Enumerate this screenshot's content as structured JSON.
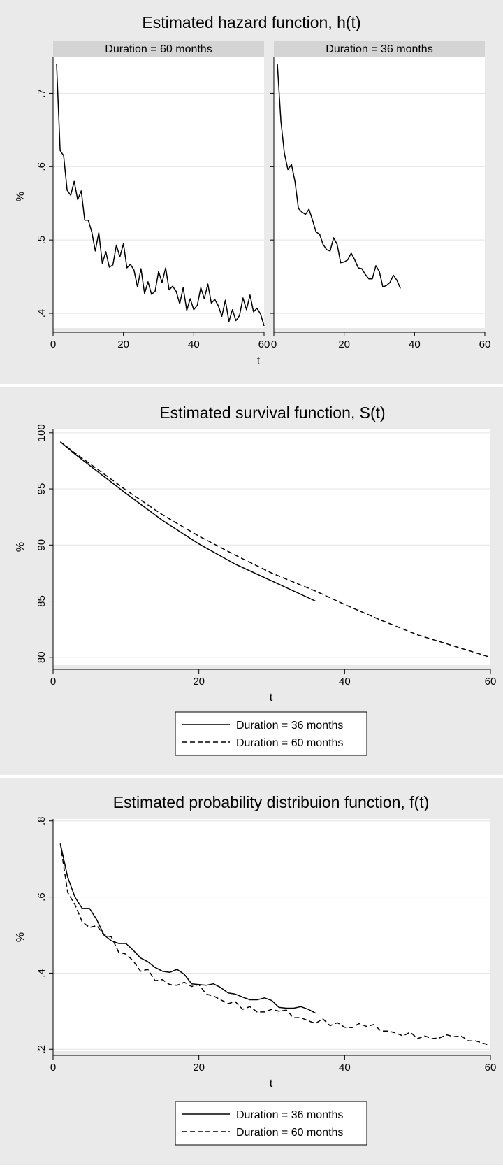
{
  "chart_data": [
    {
      "type": "line",
      "title": "Estimated hazard function, h(t)",
      "ylabel": "%",
      "xlabel": "t",
      "grid": true,
      "panels": [
        {
          "label": "Duration = 60 months",
          "xlim": [
            0,
            60
          ],
          "xticks": [
            0,
            20,
            40,
            60
          ],
          "ylim": [
            0.38,
            0.75
          ],
          "yticks": [
            0.4,
            0.5,
            0.6,
            0.7
          ],
          "ytick_labels": [
            ".4",
            ".5",
            ".6",
            ".7"
          ],
          "x": [
            1,
            2,
            3,
            4,
            5,
            6,
            7,
            8,
            9,
            10,
            11,
            12,
            13,
            14,
            15,
            16,
            17,
            18,
            19,
            20,
            21,
            22,
            23,
            24,
            25,
            26,
            27,
            28,
            29,
            30,
            31,
            32,
            33,
            34,
            35,
            36,
            37,
            38,
            39,
            40,
            41,
            42,
            43,
            44,
            45,
            46,
            47,
            48,
            49,
            50,
            51,
            52,
            53,
            54,
            55,
            56,
            57,
            58,
            59,
            60
          ],
          "y": [
            0.74,
            0.622,
            0.615,
            0.568,
            0.561,
            0.58,
            0.555,
            0.567,
            0.527,
            0.527,
            0.511,
            0.485,
            0.51,
            0.468,
            0.484,
            0.463,
            0.466,
            0.493,
            0.477,
            0.495,
            0.462,
            0.467,
            0.459,
            0.436,
            0.461,
            0.427,
            0.443,
            0.426,
            0.43,
            0.457,
            0.442,
            0.462,
            0.432,
            0.437,
            0.43,
            0.413,
            0.435,
            0.404,
            0.42,
            0.405,
            0.411,
            0.435,
            0.42,
            0.44,
            0.414,
            0.419,
            0.41,
            0.396,
            0.418,
            0.389,
            0.405,
            0.39,
            0.397,
            0.421,
            0.405,
            0.425,
            0.402,
            0.407,
            0.399,
            0.383
          ]
        },
        {
          "label": "Duration = 36 months",
          "xlim": [
            0,
            60
          ],
          "xticks": [
            0,
            20,
            40,
            60
          ],
          "ylim": [
            0.38,
            0.75
          ],
          "yticks": [
            0.4,
            0.5,
            0.6,
            0.7
          ],
          "ytick_labels": [
            ".4",
            ".5",
            ".6",
            ".7"
          ],
          "x": [
            1,
            2,
            3,
            4,
            5,
            6,
            7,
            8,
            9,
            10,
            11,
            12,
            13,
            14,
            15,
            16,
            17,
            18,
            19,
            20,
            21,
            22,
            23,
            24,
            25,
            26,
            27,
            28,
            29,
            30,
            31,
            32,
            33,
            34,
            35,
            36
          ],
          "y": [
            0.74,
            0.662,
            0.618,
            0.596,
            0.603,
            0.58,
            0.543,
            0.538,
            0.535,
            0.542,
            0.527,
            0.511,
            0.508,
            0.494,
            0.487,
            0.485,
            0.503,
            0.494,
            0.469,
            0.47,
            0.473,
            0.482,
            0.473,
            0.462,
            0.461,
            0.453,
            0.447,
            0.447,
            0.465,
            0.457,
            0.436,
            0.438,
            0.442,
            0.452,
            0.445,
            0.434
          ]
        }
      ]
    },
    {
      "type": "line",
      "title": "Estimated survival function, S(t)",
      "ylabel": "%",
      "xlabel": "t",
      "grid": true,
      "xlim": [
        0,
        60
      ],
      "xticks": [
        0,
        20,
        40,
        60
      ],
      "ylim": [
        79.3,
        100.3
      ],
      "yticks": [
        80,
        85,
        90,
        95,
        100
      ],
      "legend": {
        "placement": "bottom",
        "entries": [
          "Duration = 36 months",
          "Duration = 60 months"
        ]
      },
      "series": [
        {
          "name": "Duration = 36 months",
          "style": "solid",
          "x": [
            1,
            3,
            6,
            10,
            15,
            20,
            25,
            30,
            36
          ],
          "y": [
            99.2,
            98.1,
            96.6,
            94.6,
            92.2,
            90.1,
            88.3,
            86.8,
            85.0
          ]
        },
        {
          "name": "Duration = 60 months",
          "style": "dashed",
          "x": [
            1,
            3,
            6,
            10,
            15,
            20,
            25,
            30,
            36,
            40,
            45,
            50,
            55,
            60
          ],
          "y": [
            99.2,
            98.2,
            96.8,
            94.9,
            92.7,
            90.8,
            89.1,
            87.5,
            85.9,
            84.7,
            83.3,
            82.0,
            81.0,
            80.0
          ]
        }
      ]
    },
    {
      "type": "line",
      "title": "Estimated probability distribuion function, f(t)",
      "ylabel": "%",
      "xlabel": "t",
      "grid": true,
      "xlim": [
        0,
        60
      ],
      "xticks": [
        0,
        20,
        40,
        60
      ],
      "ylim": [
        0.195,
        0.805
      ],
      "yticks": [
        0.2,
        0.4,
        0.6,
        0.8
      ],
      "ytick_labels": [
        ".2",
        ".4",
        ".6",
        ".8"
      ],
      "legend": {
        "placement": "bottom",
        "entries": [
          "Duration = 36 months",
          "Duration = 60 months"
        ]
      },
      "series": [
        {
          "name": "Duration = 36 months",
          "style": "solid",
          "x": [
            1,
            2,
            3,
            4,
            5,
            6,
            7,
            8,
            9,
            10,
            11,
            12,
            13,
            14,
            15,
            16,
            17,
            18,
            19,
            20,
            21,
            22,
            23,
            24,
            25,
            26,
            27,
            28,
            29,
            30,
            31,
            32,
            33,
            34,
            35,
            36
          ],
          "y": [
            0.74,
            0.652,
            0.6,
            0.57,
            0.57,
            0.54,
            0.5,
            0.485,
            0.478,
            0.478,
            0.46,
            0.44,
            0.43,
            0.415,
            0.405,
            0.402,
            0.41,
            0.397,
            0.372,
            0.37,
            0.368,
            0.372,
            0.362,
            0.348,
            0.345,
            0.337,
            0.33,
            0.33,
            0.335,
            0.328,
            0.31,
            0.308,
            0.308,
            0.312,
            0.305,
            0.295
          ]
        },
        {
          "name": "Duration = 60 months",
          "style": "dashed",
          "x": [
            1,
            2,
            3,
            4,
            5,
            6,
            7,
            8,
            9,
            10,
            11,
            12,
            13,
            14,
            15,
            16,
            17,
            18,
            19,
            20,
            21,
            22,
            23,
            24,
            25,
            26,
            27,
            28,
            29,
            30,
            31,
            32,
            33,
            34,
            35,
            36,
            37,
            38,
            39,
            40,
            41,
            42,
            43,
            44,
            45,
            46,
            47,
            48,
            49,
            50,
            51,
            52,
            53,
            54,
            55,
            56,
            57,
            58,
            59,
            60
          ],
          "y": [
            0.74,
            0.612,
            0.58,
            0.535,
            0.52,
            0.525,
            0.5,
            0.495,
            0.455,
            0.45,
            0.432,
            0.405,
            0.41,
            0.38,
            0.383,
            0.37,
            0.368,
            0.376,
            0.365,
            0.37,
            0.345,
            0.34,
            0.33,
            0.32,
            0.325,
            0.305,
            0.312,
            0.298,
            0.298,
            0.305,
            0.3,
            0.303,
            0.283,
            0.283,
            0.275,
            0.268,
            0.28,
            0.262,
            0.27,
            0.258,
            0.257,
            0.268,
            0.26,
            0.265,
            0.248,
            0.248,
            0.243,
            0.235,
            0.245,
            0.228,
            0.235,
            0.228,
            0.23,
            0.238,
            0.233,
            0.235,
            0.222,
            0.222,
            0.216,
            0.21
          ]
        }
      ]
    }
  ]
}
